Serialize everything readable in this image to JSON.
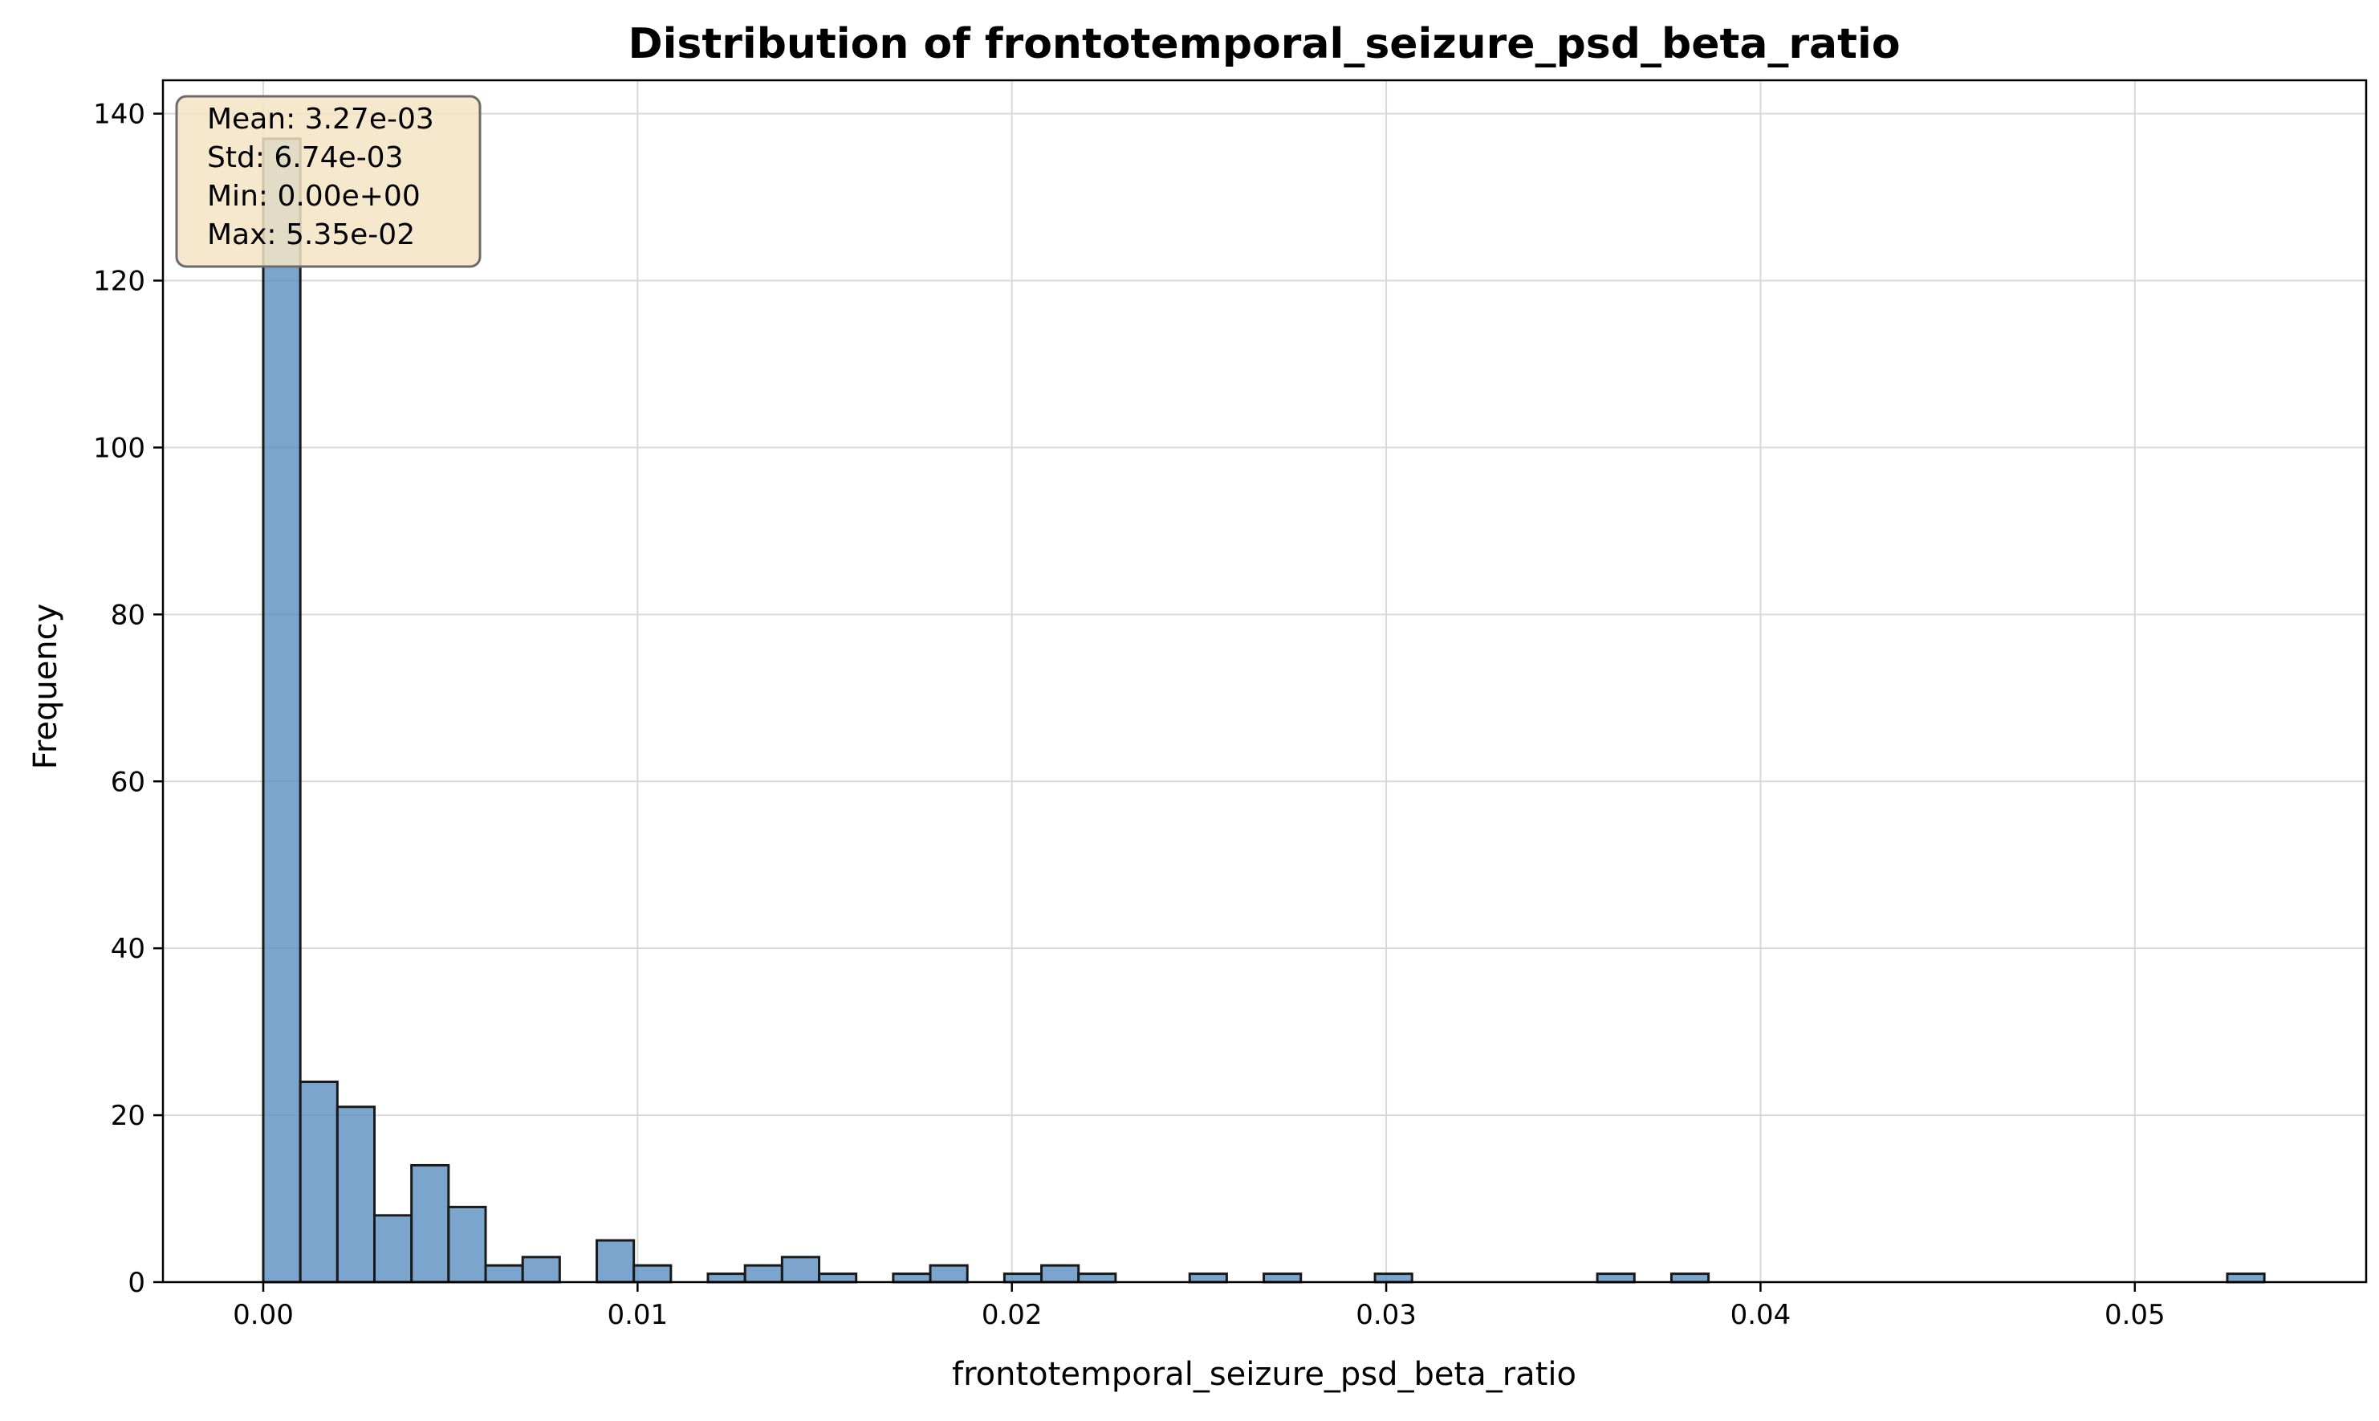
{
  "chart_data": {
    "type": "bar",
    "title": "Distribution of frontotemporal_seizure_psd_beta_ratio",
    "xlabel": "frontotemporal_seizure_psd_beta_ratio",
    "ylabel": "Frequency",
    "xlim": [
      -0.00268,
      0.05618
    ],
    "ylim": [
      0,
      144
    ],
    "grid": true,
    "bin_width": 0.00099,
    "x_ticks": [
      "0.00",
      "0.01",
      "0.02",
      "0.03",
      "0.04",
      "0.05"
    ],
    "x_tick_values": [
      0.0,
      0.01,
      0.02,
      0.03,
      0.04,
      0.05
    ],
    "y_ticks": [
      "0",
      "20",
      "40",
      "60",
      "80",
      "100",
      "120",
      "140"
    ],
    "y_tick_values": [
      0,
      20,
      40,
      60,
      80,
      100,
      120,
      140
    ],
    "bins": [
      {
        "x": 0.0,
        "count": 137
      },
      {
        "x": 0.00099,
        "count": 24
      },
      {
        "x": 0.00198,
        "count": 21
      },
      {
        "x": 0.00297,
        "count": 8
      },
      {
        "x": 0.00396,
        "count": 14
      },
      {
        "x": 0.00495,
        "count": 9
      },
      {
        "x": 0.00594,
        "count": 2
      },
      {
        "x": 0.00693,
        "count": 3
      },
      {
        "x": 0.00891,
        "count": 5
      },
      {
        "x": 0.0099,
        "count": 2
      },
      {
        "x": 0.01188,
        "count": 1
      },
      {
        "x": 0.01287,
        "count": 2
      },
      {
        "x": 0.01386,
        "count": 3
      },
      {
        "x": 0.01485,
        "count": 1
      },
      {
        "x": 0.01683,
        "count": 1
      },
      {
        "x": 0.01782,
        "count": 2
      },
      {
        "x": 0.0198,
        "count": 1
      },
      {
        "x": 0.02079,
        "count": 2
      },
      {
        "x": 0.02178,
        "count": 1
      },
      {
        "x": 0.02475,
        "count": 1
      },
      {
        "x": 0.02673,
        "count": 1
      },
      {
        "x": 0.0297,
        "count": 1
      },
      {
        "x": 0.03564,
        "count": 1
      },
      {
        "x": 0.03762,
        "count": 1
      },
      {
        "x": 0.05247,
        "count": 1
      }
    ],
    "stats": [
      "Mean: 3.27e-03",
      "Std: 6.74e-03",
      "Min: 0.00e+00",
      "Max: 5.35e-02"
    ],
    "stats_placement": "top-left",
    "colors": {
      "bar_fill": "#5b8fc0",
      "bar_edge": "#1a1a1a",
      "grid": "#d9d9d9",
      "stats_box_fill": "#f5e4c3",
      "stats_box_edge": "#6b6b6b"
    }
  }
}
